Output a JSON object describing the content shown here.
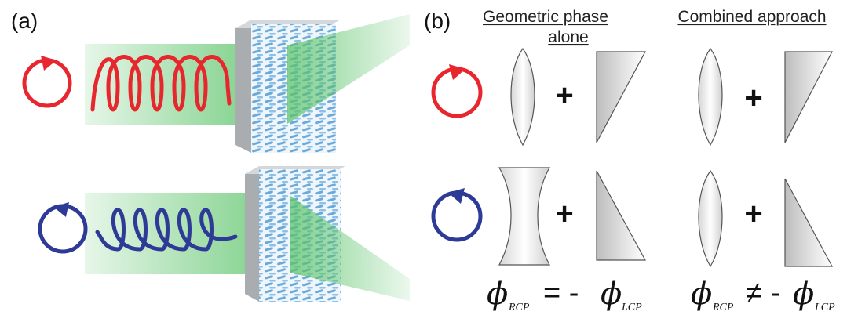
{
  "panel_a": {
    "label": "(a)"
  },
  "panel_b": {
    "label": "(b)",
    "headers": {
      "geometric_line1": "Geometric phase",
      "geometric_line2": "alone",
      "combined": "Combined approach"
    },
    "plus": "+",
    "equations": {
      "left": {
        "lhs_symbol": "ϕ",
        "lhs_sub": "RCP",
        "operator": "= -",
        "rhs_symbol": "ϕ",
        "rhs_sub": "LCP"
      },
      "right": {
        "lhs_symbol": "ϕ",
        "lhs_sub": "RCP",
        "operator": "≠ -",
        "rhs_symbol": "ϕ",
        "rhs_sub": "LCP"
      }
    }
  },
  "colors": {
    "rcp": "#e8262d",
    "lcp": "#2e3b96",
    "beam": "#5cc46a",
    "metasurface": "#7fb4dc",
    "plate": "#b9bdbf"
  },
  "icons": [
    "rcp-circular-arrow-icon",
    "lcp-circular-arrow-icon",
    "convex-lens-icon",
    "concave-lens-icon",
    "prism-up-icon",
    "prism-down-icon"
  ]
}
